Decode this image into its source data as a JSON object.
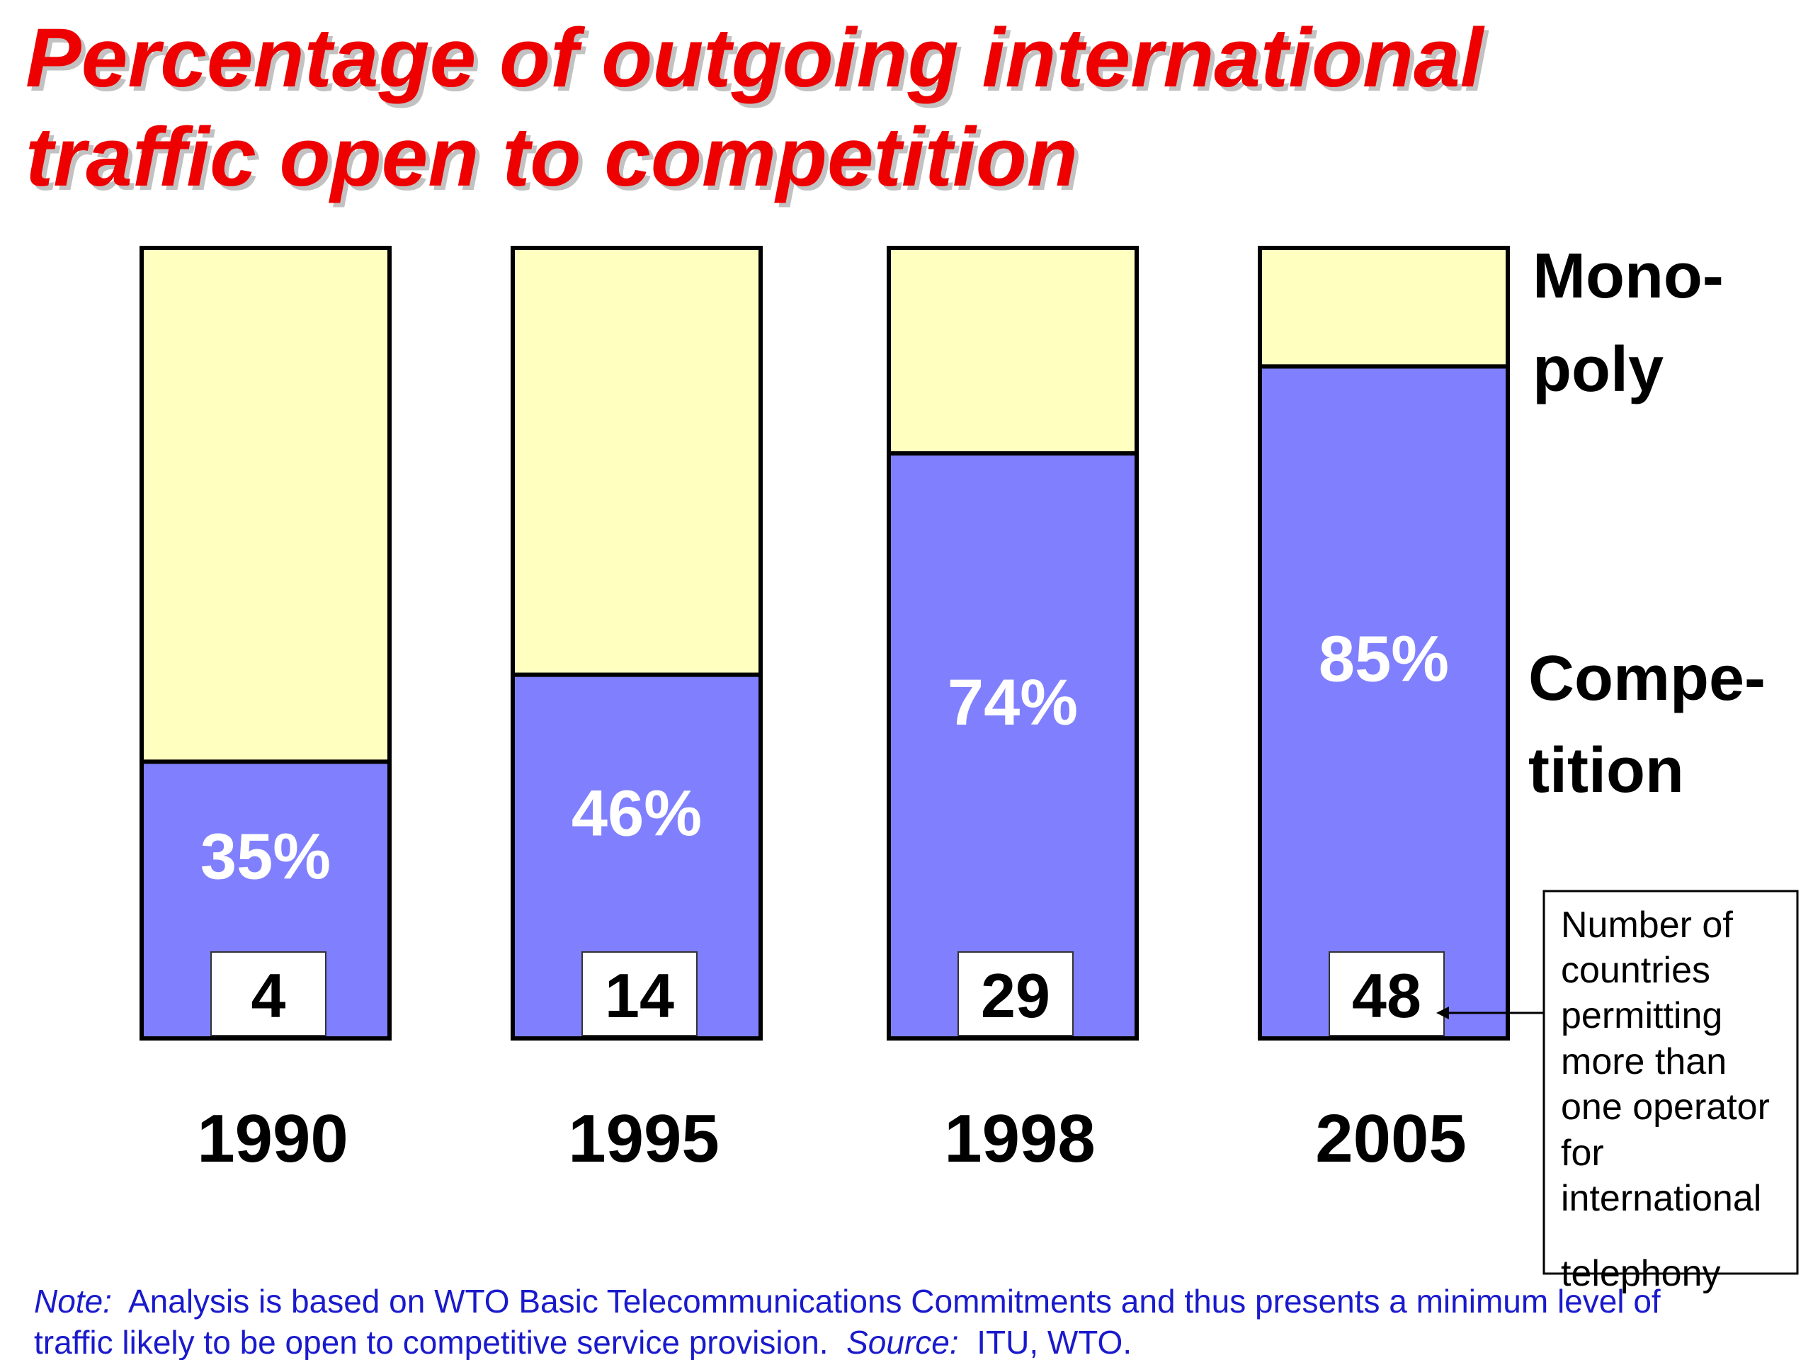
{
  "chart_data": {
    "type": "bar",
    "stacked": true,
    "title": "Percentage of outgoing international traffic open to competition",
    "title_lines": [
      "Percentage of outgoing international",
      "traffic open to competition"
    ],
    "categories": [
      "1990",
      "1995",
      "1998",
      "2005"
    ],
    "series": [
      {
        "name": "Competition",
        "values": [
          35,
          46,
          74,
          85
        ],
        "color": "#8080ff"
      },
      {
        "name": "Monopoly",
        "values": [
          65,
          54,
          26,
          15
        ],
        "color": "#ffffc0"
      }
    ],
    "data_labels": [
      "35%",
      "46%",
      "74%",
      "85%"
    ],
    "country_counts": [
      "4",
      "14",
      "29",
      "48"
    ],
    "ylim": [
      0,
      100
    ],
    "legend": {
      "placement": "right",
      "monopoly_lines": [
        "Mono-",
        "poly"
      ],
      "competition_lines": [
        "Compe-",
        "tition"
      ]
    },
    "callout_lines": [
      "Number of",
      "countries",
      "permitting",
      "more than",
      "one operator",
      "for",
      "international",
      "telephony"
    ],
    "note": {
      "line1": [
        {
          "text": "Note:",
          "italic": true
        },
        {
          "text": "  Analysis is based on WTO Basic Telecommunications Commitments and thus presents a minimum level of",
          "italic": false
        }
      ],
      "line2": [
        {
          "text": "traffic likely to be open to competitive service provision.  ",
          "italic": false
        },
        {
          "text": "Source:",
          "italic": true
        },
        {
          "text": "  ITU, WTO.",
          "italic": false
        }
      ]
    },
    "colors": {
      "title": "#ee0000",
      "competition": "#8080ff",
      "monopoly": "#ffffc0",
      "note": "#1a1acc",
      "outline": "#000000"
    },
    "grid": false
  }
}
